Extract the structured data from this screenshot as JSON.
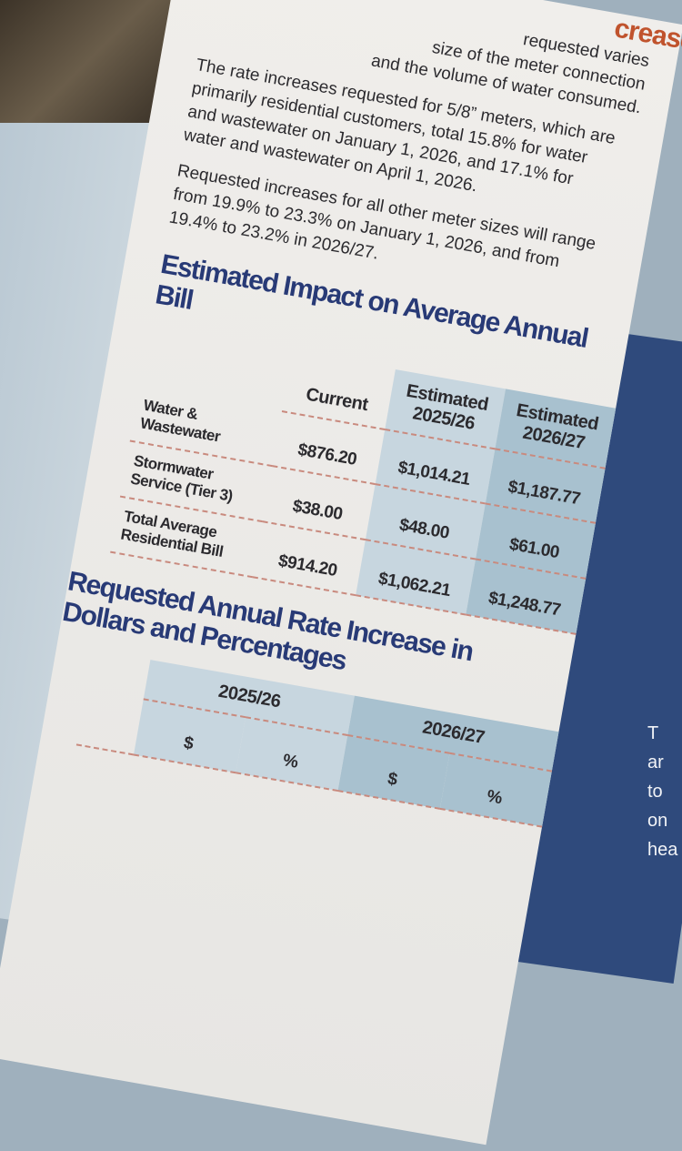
{
  "header": {
    "title": "creases:"
  },
  "intro": {
    "lines": [
      "requested varies",
      "size of the meter connection",
      "and the volume of water consumed."
    ]
  },
  "paragraphs": [
    "The rate increases requested for 5/8” meters, which are primarily residential customers, total 15.8% for water and wastewater on January 1, 2026, and 17.1% for water and wastewater on April 1, 2026.",
    "Requested increases for all other meter sizes will range from 19.9% to 23.3% on January 1, 2026, and from 19.4% to 23.2% in 2026/27."
  ],
  "impact_table": {
    "title": "Estimated Impact on Average Annual Bill",
    "columns": [
      "Current",
      "Estimated 2025/26",
      "Estimated 2026/27"
    ],
    "rows": [
      {
        "label": "Water & Wastewater",
        "values": [
          "$876.20",
          "$1,014.21",
          "$1,187.77"
        ]
      },
      {
        "label": "Stormwater Service (Tier 3)",
        "values": [
          "$38.00",
          "$48.00",
          "$61.00"
        ]
      },
      {
        "label": "Total Average Residential Bill",
        "values": [
          "$914.20",
          "$1,062.21",
          "$1,248.77"
        ]
      }
    ]
  },
  "rate_table": {
    "title": "Requested Annual Rate Increase in Dollars and Percentages",
    "columns": [
      "2025/26",
      "2026/27"
    ],
    "subcolumns": [
      "$",
      "%"
    ]
  },
  "side_panel": {
    "lines": [
      "T",
      "ar",
      "to",
      "on",
      "hea"
    ]
  }
}
